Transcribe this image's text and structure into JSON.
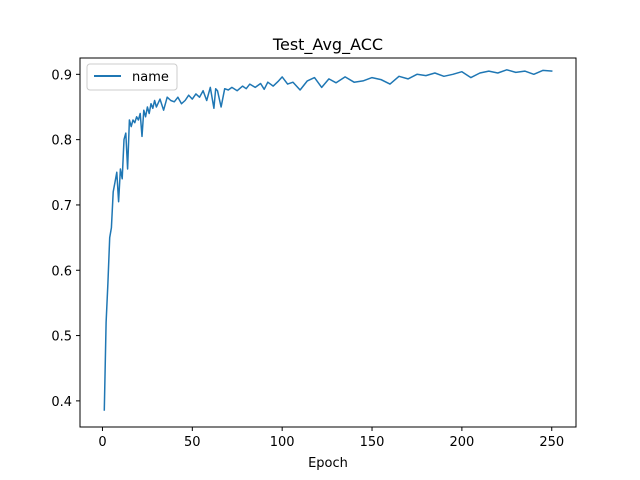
{
  "chart_data": {
    "type": "line",
    "title": "Test_Avg_ACC",
    "xlabel": "Epoch",
    "ylabel": "",
    "xlim": [
      -12.5,
      263.5
    ],
    "ylim": [
      0.36,
      0.925
    ],
    "xticks": [
      0,
      50,
      100,
      150,
      200,
      250
    ],
    "xtick_labels": [
      "0",
      "50",
      "100",
      "150",
      "200",
      "250"
    ],
    "yticks": [
      0.4,
      0.5,
      0.6,
      0.7,
      0.8,
      0.9
    ],
    "ytick_labels": [
      "0.4",
      "0.5",
      "0.6",
      "0.7",
      "0.8",
      "0.9"
    ],
    "grid": false,
    "legend": {
      "placement": "upper-left",
      "entries": [
        "name"
      ]
    },
    "series": [
      {
        "name": "name",
        "color": "#1f77b4",
        "x": [
          1,
          2,
          3,
          4,
          5,
          6,
          7,
          8,
          9,
          10,
          11,
          12,
          13,
          14,
          15,
          16,
          17,
          18,
          19,
          20,
          21,
          22,
          23,
          24,
          25,
          26,
          27,
          28,
          29,
          30,
          32,
          34,
          36,
          38,
          40,
          42,
          44,
          46,
          48,
          50,
          52,
          54,
          56,
          58,
          60,
          62,
          63,
          64,
          66,
          68,
          70,
          72,
          75,
          78,
          80,
          82,
          85,
          88,
          90,
          92,
          95,
          98,
          100,
          103,
          106,
          110,
          114,
          118,
          122,
          126,
          130,
          135,
          140,
          145,
          150,
          155,
          160,
          165,
          170,
          175,
          180,
          185,
          190,
          195,
          200,
          205,
          210,
          215,
          220,
          225,
          230,
          235,
          240,
          245,
          250
        ],
        "values": [
          0.386,
          0.52,
          0.58,
          0.65,
          0.665,
          0.72,
          0.735,
          0.75,
          0.705,
          0.755,
          0.74,
          0.8,
          0.81,
          0.755,
          0.83,
          0.82,
          0.83,
          0.826,
          0.835,
          0.83,
          0.84,
          0.805,
          0.845,
          0.835,
          0.85,
          0.84,
          0.855,
          0.848,
          0.86,
          0.85,
          0.862,
          0.845,
          0.865,
          0.86,
          0.858,
          0.865,
          0.855,
          0.86,
          0.868,
          0.862,
          0.87,
          0.865,
          0.875,
          0.86,
          0.88,
          0.848,
          0.878,
          0.875,
          0.85,
          0.878,
          0.876,
          0.88,
          0.875,
          0.882,
          0.878,
          0.885,
          0.88,
          0.886,
          0.877,
          0.888,
          0.882,
          0.89,
          0.896,
          0.885,
          0.888,
          0.876,
          0.89,
          0.895,
          0.88,
          0.893,
          0.887,
          0.896,
          0.888,
          0.89,
          0.895,
          0.892,
          0.885,
          0.897,
          0.893,
          0.9,
          0.898,
          0.902,
          0.897,
          0.9,
          0.904,
          0.895,
          0.902,
          0.905,
          0.902,
          0.907,
          0.903,
          0.905,
          0.9,
          0.906,
          0.905
        ]
      }
    ]
  }
}
